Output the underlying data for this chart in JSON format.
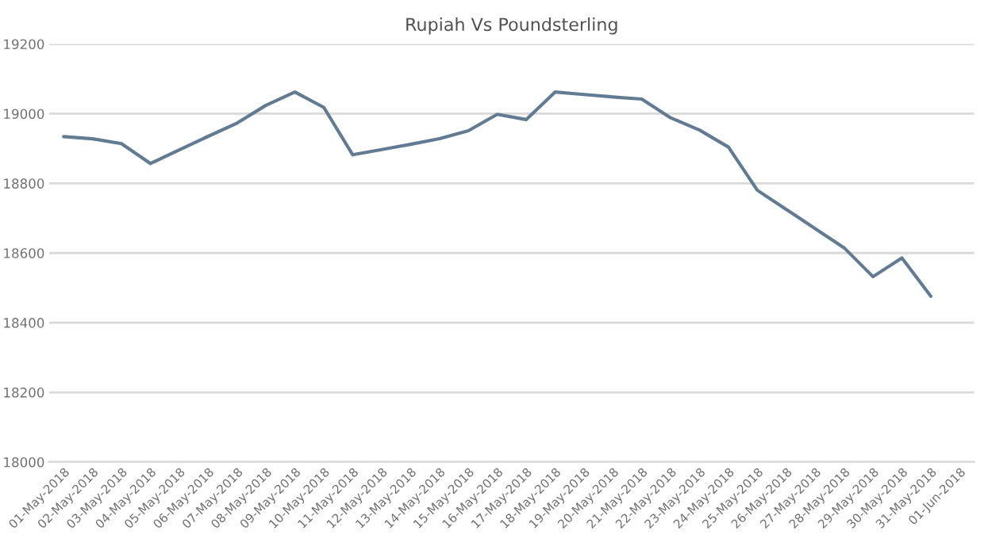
{
  "chart_data": {
    "type": "line",
    "title": "Rupiah Vs Poundsterling",
    "categories": [
      "01-May-2018",
      "02-May-2018",
      "03-May-2018",
      "04-May-2018",
      "05-May-2018",
      "06-May-2018",
      "07-May-2018",
      "08-May-2018",
      "09-May-2018",
      "10-May-2018",
      "11-May-2018",
      "12-May-2018",
      "13-May-2018",
      "14-May-2018",
      "15-May-2018",
      "16-May-2018",
      "17-May-2018",
      "18-May-2018",
      "19-May-2018",
      "20-May-2018",
      "21-May-2018",
      "22-May-2018",
      "23-May-2018",
      "24-May-2018",
      "25-May-2018",
      "26-May-2018",
      "27-May-2018",
      "28-May-2018",
      "29-May-2018",
      "30-May-2018",
      "31-May-2018",
      "01-Jun-2018"
    ],
    "series": [
      {
        "color": "#607b92",
        "values": [
          18934,
          18928,
          18914,
          18857,
          18896,
          18935,
          18973,
          19024,
          19062,
          19018,
          18882,
          18897,
          18912,
          18928,
          18951,
          18998,
          18983,
          19062,
          19055,
          19048,
          19042,
          18988,
          18953,
          18904,
          18780,
          18725,
          18670,
          18615,
          18532,
          18586,
          18476,
          null
        ]
      }
    ],
    "ylim": [
      18000,
      19200
    ],
    "yticks": [
      18000,
      18200,
      18400,
      18600,
      18800,
      19000,
      19200
    ],
    "grid": "y",
    "legend": false,
    "marker": "none",
    "line_style": "solid"
  }
}
